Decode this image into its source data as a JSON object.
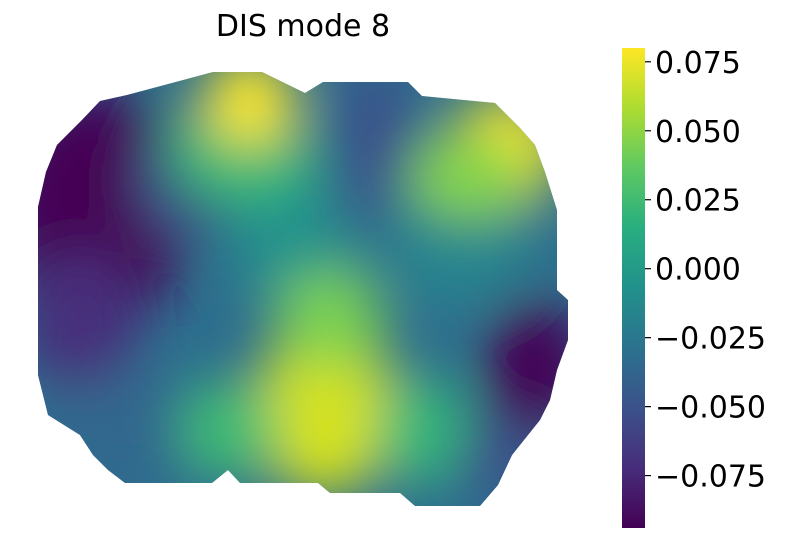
{
  "chart_data": {
    "type": "heatmap",
    "title": "DIS mode 8",
    "colormap": "viridis",
    "colorbar": {
      "range": [
        -0.094,
        0.08
      ],
      "ticks": [
        0.075,
        0.05,
        0.025,
        0.0,
        -0.025,
        -0.05,
        -0.075
      ],
      "tick_labels": [
        "0.075",
        "0.050",
        "0.025",
        "0.000",
        "−0.025",
        "−0.050",
        "−0.075"
      ]
    },
    "axes_visible": false,
    "field_features": [
      {
        "kind": "max",
        "location": "top-center",
        "value": 0.07
      },
      {
        "kind": "max",
        "location": "top-right",
        "value": 0.078
      },
      {
        "kind": "max",
        "location": "bottom-center",
        "value": 0.07
      },
      {
        "kind": "min",
        "location": "upper-left",
        "value": -0.092
      },
      {
        "kind": "min",
        "location": "right-middle",
        "value": -0.085
      },
      {
        "kind": "min",
        "location": "top-center-right",
        "value": -0.04
      }
    ]
  }
}
